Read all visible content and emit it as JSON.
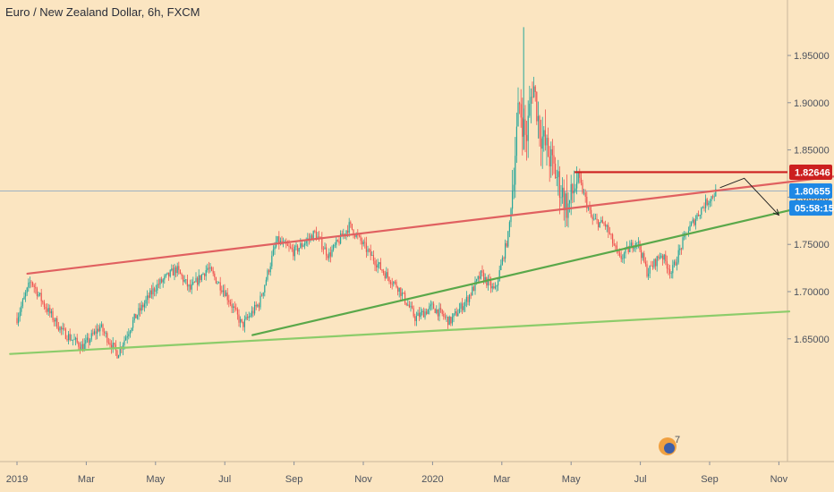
{
  "title": "Euro / New Zealand Dollar, 6h, FXCM",
  "colors": {
    "background": "#fbe5c1",
    "up": "#26a69a",
    "down": "#ef5350",
    "resistance": "#e06060",
    "support": "#5aa84a",
    "long_support": "#8ccc6a",
    "level": "#cc1f1f",
    "price_tag": "#1e88e5"
  },
  "chart_data": {
    "type": "candlestick",
    "x_tick_labels": [
      "2019",
      "Mar",
      "May",
      "Jul",
      "Sep",
      "Nov",
      "2020",
      "Mar",
      "May",
      "Jul",
      "Sep",
      "Nov"
    ],
    "y_ticks": [
      "1.95000",
      "1.90000",
      "1.85000",
      "1.80000",
      "1.75000",
      "1.70000",
      "1.65000"
    ],
    "y_tick_values": [
      1.95,
      1.9,
      1.85,
      1.8,
      1.75,
      1.7,
      1.65
    ],
    "ylim": [
      1.618,
      1.98
    ],
    "price_path": [
      [
        0,
        1.672
      ],
      [
        0.4,
        1.712
      ],
      [
        0.8,
        1.685
      ],
      [
        1.3,
        1.658
      ],
      [
        1.9,
        1.641
      ],
      [
        2.4,
        1.663
      ],
      [
        2.9,
        1.634
      ],
      [
        3.4,
        1.672
      ],
      [
        4.0,
        1.705
      ],
      [
        4.6,
        1.724
      ],
      [
        5.0,
        1.702
      ],
      [
        5.5,
        1.725
      ],
      [
        6.0,
        1.7
      ],
      [
        6.5,
        1.664
      ],
      [
        7.0,
        1.688
      ],
      [
        7.5,
        1.754
      ],
      [
        8.0,
        1.742
      ],
      [
        8.6,
        1.762
      ],
      [
        9.0,
        1.738
      ],
      [
        9.6,
        1.77
      ],
      [
        10.1,
        1.744
      ],
      [
        10.6,
        1.72
      ],
      [
        11.0,
        1.705
      ],
      [
        11.5,
        1.672
      ],
      [
        12.0,
        1.684
      ],
      [
        12.5,
        1.668
      ],
      [
        13.0,
        1.692
      ],
      [
        13.4,
        1.718
      ],
      [
        13.8,
        1.7
      ],
      [
        14.2,
        1.762
      ],
      [
        14.5,
        1.9
      ],
      [
        14.7,
        1.86
      ],
      [
        14.9,
        1.923
      ],
      [
        15.1,
        1.87
      ],
      [
        15.4,
        1.84
      ],
      [
        15.6,
        1.82
      ],
      [
        15.9,
        1.788
      ],
      [
        16.2,
        1.822
      ],
      [
        16.6,
        1.776
      ],
      [
        17.0,
        1.77
      ],
      [
        17.4,
        1.734
      ],
      [
        17.9,
        1.755
      ],
      [
        18.2,
        1.72
      ],
      [
        18.6,
        1.74
      ],
      [
        18.9,
        1.72
      ],
      [
        19.3,
        1.76
      ],
      [
        19.8,
        1.79
      ],
      [
        20.2,
        1.8065
      ]
    ],
    "spike": {
      "x": 14.63,
      "high": 1.98,
      "low": 1.85
    },
    "annotations": {
      "resistance_line": [
        [
          0.3,
          1.719
        ],
        [
          25.2,
          1.829
        ]
      ],
      "support_line": [
        [
          6.8,
          1.654
        ],
        [
          22.3,
          1.786
        ]
      ],
      "long_support_line": [
        [
          -0.2,
          1.634
        ],
        [
          22.3,
          1.679
        ]
      ],
      "horizontal_level": {
        "from_x": 16.1,
        "value": 1.82646
      },
      "projection_arrow": [
        [
          20.3,
          1.81
        ],
        [
          21.0,
          1.82
        ],
        [
          22.0,
          1.781
        ]
      ],
      "current_price": 1.80655
    },
    "price_tags": {
      "level": "1.82646",
      "last": "1.80655",
      "countdown": "05:58:15"
    }
  },
  "logo_badge": "7"
}
